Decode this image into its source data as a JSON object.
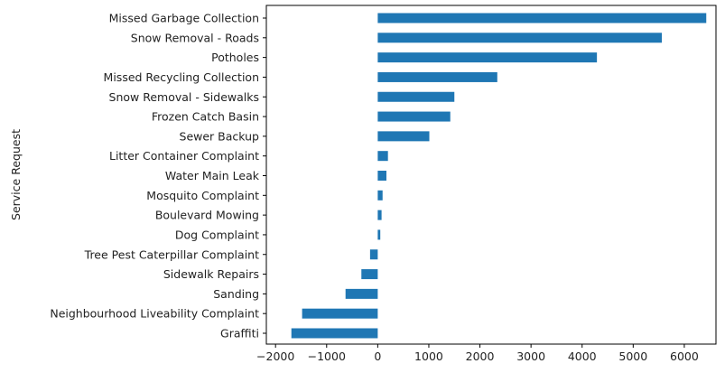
{
  "chart_data": {
    "type": "bar",
    "orientation": "horizontal",
    "title": "",
    "xlabel": "",
    "ylabel": "Service Request",
    "bar_color": "#1f77b4",
    "grid": false,
    "legend": false,
    "xlim": [
      -2180,
      6620
    ],
    "x_ticks": [
      -2000,
      -1000,
      0,
      1000,
      2000,
      3000,
      4000,
      5000,
      6000
    ],
    "x_tick_labels": [
      "−2000",
      "−1000",
      "0",
      "1000",
      "2000",
      "3000",
      "4000",
      "5000",
      "6000"
    ],
    "categories": [
      "Missed Garbage Collection",
      "Snow Removal - Roads",
      "Potholes",
      "Missed Recycling Collection",
      "Snow Removal - Sidewalks",
      "Frozen Catch Basin",
      "Sewer Backup",
      "Litter Container Complaint",
      "Water Main Leak",
      "Mosquito Complaint",
      "Boulevard Mowing",
      "Dog Complaint",
      "Tree Pest Caterpillar Complaint",
      "Sidewalk Repairs",
      "Sanding",
      "Neighbourhood Liveability Complaint",
      "Graffiti"
    ],
    "values": [
      6430,
      5560,
      4290,
      2340,
      1500,
      1420,
      1010,
      200,
      170,
      95,
      75,
      50,
      -150,
      -320,
      -630,
      -1480,
      -1690
    ]
  }
}
